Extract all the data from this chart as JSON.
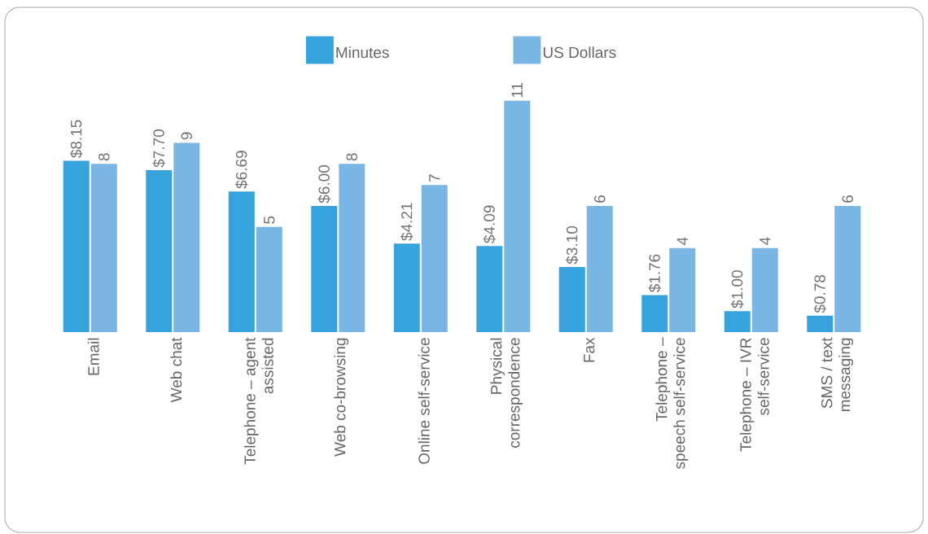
{
  "chart_data": {
    "type": "bar",
    "categories": [
      "Email",
      "Web chat",
      "Telephone – agent assisted",
      "Web co-browsing",
      "Online self-service",
      "Physical correspondence",
      "Fax",
      "Telephone – speech self-service",
      "Telephone – IVR self-service",
      "SMS / text messaging"
    ],
    "series": [
      {
        "name": "Minutes",
        "color": "#36a3dc",
        "values": [
          8.15,
          7.7,
          6.69,
          6.0,
          4.21,
          4.09,
          3.1,
          1.76,
          1.0,
          0.78
        ],
        "value_labels": [
          "$8.15",
          "$7.70",
          "$6.69",
          "$6.00",
          "$4.21",
          "$4.09",
          "$3.10",
          "$1.76",
          "$1.00",
          "$0.78"
        ]
      },
      {
        "name": "US Dollars",
        "color": "#7ab6e3",
        "values": [
          8,
          9,
          5,
          8,
          7,
          11,
          6,
          4,
          4,
          6
        ],
        "value_labels": [
          "8",
          "9",
          "5",
          "8",
          "7",
          "11",
          "6",
          "4",
          "4",
          "6"
        ]
      }
    ],
    "legend": "top"
  }
}
